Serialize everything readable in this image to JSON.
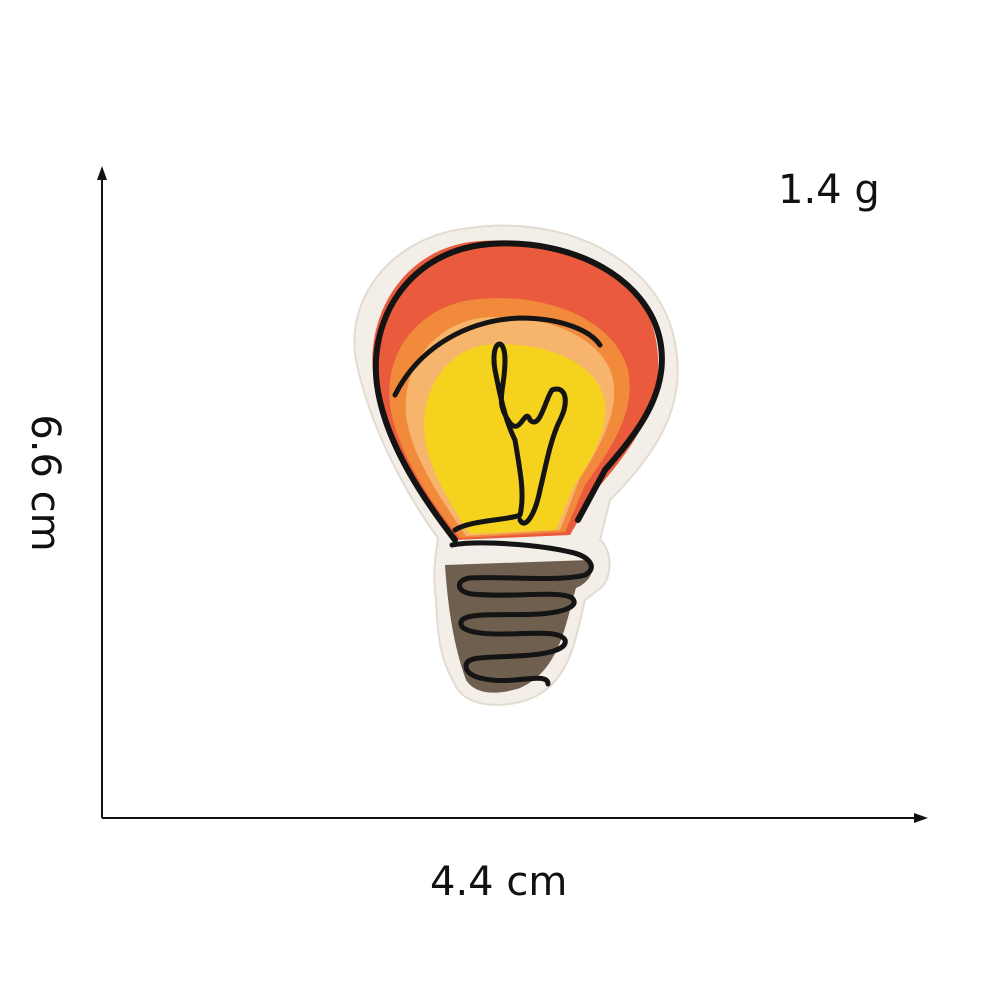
{
  "measurements": {
    "weight": "1.4 g",
    "width": "4.4 cm",
    "height": "6.6 cm"
  },
  "product": {
    "image": "embroidered-lightbulb-patch",
    "colors": {
      "border": "#f3efe8",
      "outline": "#141414",
      "red": "#ea5a3c",
      "orange": "#f28a3c",
      "peach": "#f6b46c",
      "yellow": "#f4d21e",
      "base": "#6e5f4e"
    }
  },
  "axis_color": "#111111"
}
